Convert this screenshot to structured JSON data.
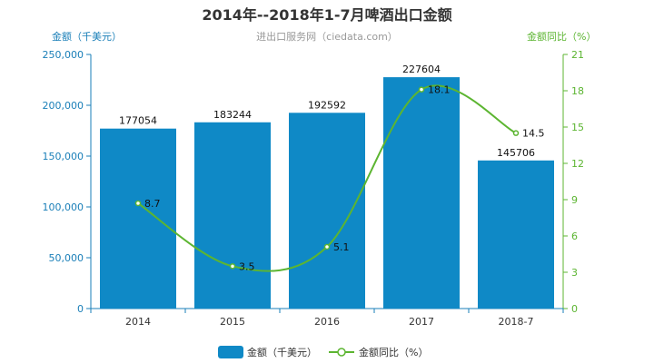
{
  "chart_data": {
    "type": "bar",
    "title": "2014年--2018年1-7月啤酒出口金额",
    "subtitle": "进出口服务网（ciedata.com）",
    "categories": [
      "2014",
      "2015",
      "2016",
      "2017",
      "2018-7"
    ],
    "series": [
      {
        "name": "金额（千美元）",
        "type": "bar",
        "axis": "left",
        "color": "#0f89c6",
        "values": [
          177054,
          183244,
          192592,
          227604,
          145706
        ],
        "labels": [
          "177054",
          "183244",
          "192592",
          "227604",
          "145706"
        ]
      },
      {
        "name": "金额同比（%）",
        "type": "line",
        "axis": "right",
        "color": "#5cb531",
        "values": [
          8.7,
          3.5,
          5.1,
          18.1,
          14.5
        ],
        "labels": [
          "8.7",
          "3.5",
          "5.1",
          "18.1",
          "14.5"
        ]
      }
    ],
    "y_left": {
      "label": "金额（千美元）",
      "ylim": [
        0,
        250000
      ],
      "ticks": [
        0,
        50000,
        100000,
        150000,
        200000,
        250000
      ],
      "tick_labels": [
        "0",
        "50,000",
        "100,000",
        "150,000",
        "200,000",
        "250,000"
      ],
      "color": "#1a7fb8"
    },
    "y_right": {
      "label": "金额同比（%）",
      "ylim": [
        0,
        21
      ],
      "ticks": [
        0,
        3,
        6,
        9,
        12,
        15,
        18,
        21
      ],
      "tick_labels": [
        "0",
        "3",
        "6",
        "9",
        "12",
        "15",
        "18",
        "21"
      ],
      "color": "#5cb531"
    },
    "grid": false,
    "legend_position": "bottom-center"
  }
}
